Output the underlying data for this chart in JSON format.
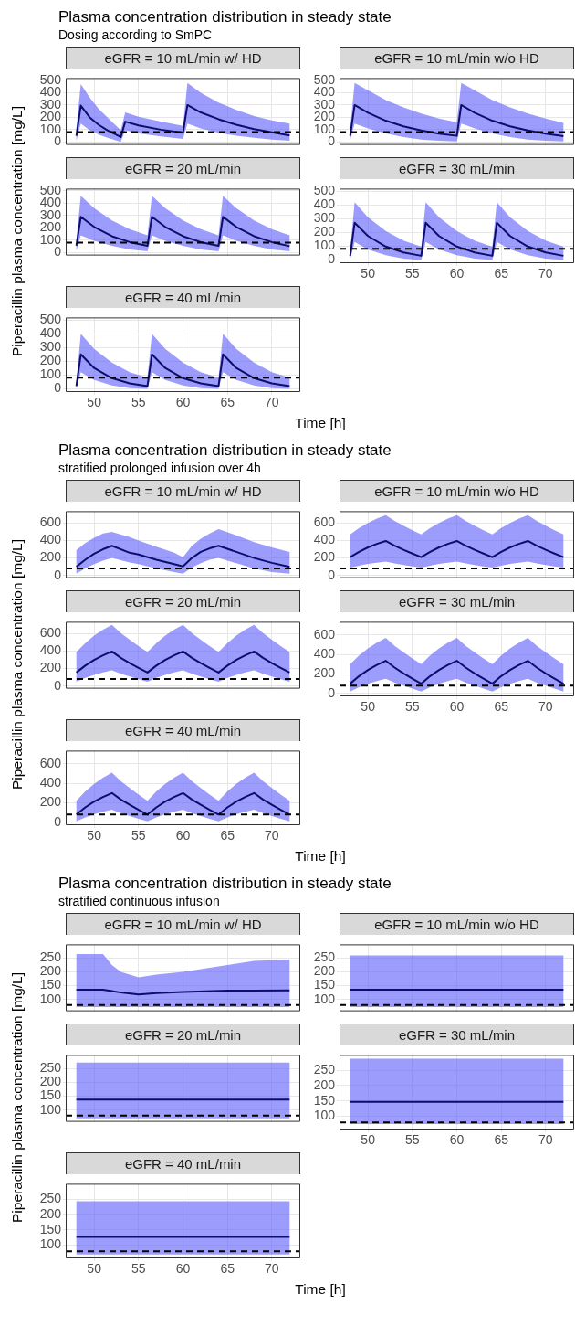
{
  "chart_data": [
    {
      "type": "other",
      "title": "Plasma concentration distribution in steady state",
      "subtitle": "Dosing according to SmPC"
    },
    {
      "type": "line",
      "title": "eGFR = 10 mL/min w/ HD",
      "ylabel": "Piperacillin plasma concentration [mg/L]",
      "tick_labels": "y",
      "grid": true,
      "xlim": [
        46.8,
        73.2
      ],
      "xticks": [
        50,
        55,
        60,
        65,
        70
      ],
      "ylim": [
        -24,
        519
      ],
      "yticks": [
        0,
        100,
        200,
        300,
        400,
        500
      ],
      "ref_lines": [
        {
          "axis": "y",
          "value": 80,
          "line_style": "dashed",
          "color": "#000000"
        }
      ],
      "x": [
        48,
        48.5,
        49.5,
        50.5,
        51.5,
        53,
        53.5,
        55,
        57.5,
        60,
        60.5,
        62,
        64,
        66,
        68,
        70,
        72
      ],
      "series": [
        {
          "color": "#0d0d6b",
          "values": [
            50,
            295,
            200,
            140,
            95,
            40,
            165,
            135,
            100,
            75,
            300,
            240,
            185,
            140,
            105,
            78,
            52
          ],
          "upper": [
            110,
            470,
            360,
            270,
            200,
            95,
            240,
            205,
            165,
            130,
            480,
            400,
            320,
            260,
            210,
            175,
            150
          ],
          "lower": [
            10,
            150,
            95,
            60,
            35,
            0,
            95,
            70,
            45,
            25,
            150,
            110,
            75,
            50,
            35,
            20,
            10
          ]
        }
      ]
    },
    {
      "type": "line",
      "title": "eGFR = 10 mL/min w/o HD",
      "tick_labels": "y",
      "grid": true,
      "xlim": [
        46.8,
        73.2
      ],
      "xticks": [
        50,
        55,
        60,
        65,
        70
      ],
      "ylim": [
        -24,
        519
      ],
      "yticks": [
        0,
        100,
        200,
        300,
        400,
        500
      ],
      "ref_lines": [
        {
          "axis": "y",
          "value": 80,
          "line_style": "dashed",
          "color": "#000000"
        }
      ],
      "x": [
        48,
        48.5,
        50,
        52,
        54,
        56,
        58,
        60,
        60.5,
        62,
        64,
        66,
        68,
        70,
        72
      ],
      "series": [
        {
          "color": "#0d0d6b",
          "values": [
            50,
            300,
            237,
            173,
            127,
            93,
            68,
            50,
            300,
            237,
            173,
            127,
            93,
            68,
            48
          ],
          "upper": [
            110,
            480,
            420,
            340,
            280,
            230,
            190,
            160,
            480,
            420,
            340,
            280,
            230,
            190,
            155
          ],
          "lower": [
            15,
            150,
            110,
            70,
            40,
            20,
            10,
            5,
            150,
            110,
            70,
            40,
            20,
            10,
            5
          ]
        }
      ]
    },
    {
      "type": "line",
      "title": "eGFR = 20 mL/min",
      "tick_labels": "y",
      "grid": true,
      "xlim": [
        46.8,
        73.2
      ],
      "xticks": [
        50,
        55,
        60,
        65,
        70
      ],
      "ylim": [
        -24,
        519
      ],
      "yticks": [
        0,
        100,
        200,
        300,
        400,
        500
      ],
      "ref_lines": [
        {
          "axis": "y",
          "value": 80,
          "line_style": "dashed",
          "color": "#000000"
        }
      ],
      "x": [
        48,
        48.5,
        50,
        52,
        54,
        56,
        56.5,
        58,
        60,
        62,
        64,
        64.5,
        66,
        68,
        70,
        72
      ],
      "series": [
        {
          "color": "#0d0d6b",
          "values": [
            55,
            290,
            208,
            133,
            85,
            55,
            290,
            208,
            133,
            85,
            55,
            290,
            208,
            133,
            85,
            52
          ],
          "upper": [
            100,
            460,
            360,
            260,
            190,
            140,
            460,
            360,
            260,
            190,
            140,
            460,
            360,
            260,
            190,
            140
          ],
          "lower": [
            15,
            140,
            95,
            55,
            25,
            10,
            140,
            95,
            55,
            25,
            10,
            140,
            95,
            55,
            25,
            10
          ]
        }
      ]
    },
    {
      "type": "line",
      "title": "eGFR = 30 mL/min",
      "grid": true,
      "xlim": [
        46.8,
        73.2
      ],
      "xticks": [
        50,
        55,
        60,
        65,
        70
      ],
      "ylim": [
        -24,
        519
      ],
      "yticks": [
        0,
        100,
        200,
        300,
        400,
        500
      ],
      "ref_lines": [
        {
          "axis": "y",
          "value": 80,
          "line_style": "dashed",
          "color": "#000000"
        }
      ],
      "x": [
        48,
        48.5,
        50,
        52,
        54,
        56,
        56.5,
        58,
        60,
        62,
        64,
        64.5,
        66,
        68,
        70,
        72
      ],
      "series": [
        {
          "color": "#0d0d6b",
          "values": [
            30,
            270,
            174,
            97,
            54,
            30,
            270,
            174,
            97,
            54,
            30,
            270,
            174,
            97,
            54,
            30
          ],
          "upper": [
            70,
            420,
            310,
            210,
            140,
            95,
            420,
            310,
            210,
            140,
            95,
            420,
            310,
            210,
            140,
            95
          ],
          "lower": [
            5,
            130,
            75,
            35,
            10,
            0,
            130,
            75,
            35,
            10,
            0,
            130,
            75,
            35,
            10,
            0
          ]
        }
      ]
    },
    {
      "type": "line",
      "title": "eGFR = 40 mL/min",
      "xlabel": "Time [h]",
      "grid": true,
      "xlim": [
        46.8,
        73.2
      ],
      "xticks": [
        50,
        55,
        60,
        65,
        70
      ],
      "ylim": [
        -24,
        519
      ],
      "yticks": [
        0,
        100,
        200,
        300,
        400,
        500
      ],
      "ref_lines": [
        {
          "axis": "y",
          "value": 80,
          "line_style": "dashed",
          "color": "#000000"
        }
      ],
      "x": [
        48,
        48.5,
        50,
        52,
        54,
        56,
        56.5,
        58,
        60,
        62,
        64,
        64.5,
        66,
        68,
        70,
        72
      ],
      "series": [
        {
          "color": "#0d0d6b",
          "values": [
            20,
            250,
            151,
            77,
            39,
            20,
            250,
            151,
            77,
            39,
            20,
            250,
            151,
            77,
            39,
            20
          ],
          "upper": [
            50,
            400,
            290,
            190,
            120,
            80,
            400,
            290,
            190,
            120,
            80,
            400,
            290,
            190,
            120,
            80
          ],
          "lower": [
            0,
            120,
            65,
            25,
            5,
            0,
            120,
            65,
            25,
            5,
            0,
            120,
            65,
            25,
            5,
            0
          ]
        }
      ]
    },
    {
      "type": "other",
      "title": "Plasma concentration distribution in steady state",
      "subtitle": "stratified prolonged infusion over 4h"
    },
    {
      "type": "line",
      "title": "eGFR = 10 mL/min w/ HD",
      "ylabel": "Piperacillin plasma concentration [mg/L]",
      "tick_labels": "y",
      "grid": true,
      "xlim": [
        46.8,
        73.2
      ],
      "xticks": [
        50,
        55,
        60,
        65,
        70
      ],
      "ylim": [
        -30,
        735
      ],
      "yticks": [
        0,
        200,
        400,
        600
      ],
      "ref_lines": [
        {
          "axis": "y",
          "value": 80,
          "line_style": "dashed",
          "color": "#000000"
        }
      ],
      "x": [
        48,
        49,
        50,
        51,
        52,
        54,
        55,
        57,
        59,
        60,
        61,
        62,
        63,
        64,
        66,
        68,
        70,
        72
      ],
      "series": [
        {
          "color": "#0d0d6b",
          "values": [
            100,
            180,
            250,
            300,
            340,
            260,
            240,
            180,
            130,
            105,
            200,
            270,
            310,
            340,
            270,
            200,
            145,
            100
          ],
          "upper": [
            290,
            370,
            430,
            480,
            500,
            440,
            400,
            330,
            260,
            210,
            340,
            420,
            480,
            530,
            460,
            380,
            320,
            270
          ],
          "lower": [
            20,
            80,
            130,
            170,
            200,
            150,
            130,
            80,
            40,
            20,
            90,
            140,
            180,
            200,
            140,
            80,
            40,
            20
          ]
        }
      ]
    },
    {
      "type": "line",
      "title": "eGFR = 10 mL/min w/o HD",
      "tick_labels": "y",
      "grid": true,
      "xlim": [
        46.8,
        73.2
      ],
      "xticks": [
        50,
        55,
        60,
        65,
        70
      ],
      "ylim": [
        -30,
        735
      ],
      "yticks": [
        0,
        200,
        400,
        600
      ],
      "ref_lines": [
        {
          "axis": "y",
          "value": 80,
          "line_style": "dashed",
          "color": "#000000"
        }
      ],
      "x": [
        48,
        49,
        50,
        51,
        52,
        53,
        54,
        55,
        56,
        57,
        58,
        59,
        60,
        61,
        62,
        63,
        64,
        65,
        66,
        67,
        68,
        69,
        70,
        71,
        72
      ],
      "series": [
        {
          "color": "#0d0d6b",
          "values": [
            210,
            271,
            321,
            362,
            395,
            340,
            293,
            251,
            210,
            271,
            321,
            362,
            395,
            340,
            293,
            251,
            210,
            271,
            321,
            362,
            395,
            340,
            293,
            251,
            210
          ],
          "upper": [
            470,
            543,
            602,
            650,
            690,
            624,
            569,
            518,
            470,
            543,
            602,
            650,
            690,
            624,
            569,
            518,
            470,
            543,
            602,
            650,
            690,
            624,
            569,
            518,
            470
          ],
          "lower": [
            90,
            113,
            132,
            147,
            160,
            139,
            121,
            105,
            90,
            113,
            132,
            147,
            160,
            139,
            121,
            105,
            90,
            113,
            132,
            147,
            160,
            139,
            121,
            105,
            90
          ]
        }
      ]
    },
    {
      "type": "line",
      "title": "eGFR = 20 mL/min",
      "tick_labels": "y",
      "grid": true,
      "xlim": [
        46.8,
        73.2
      ],
      "xticks": [
        50,
        55,
        60,
        65,
        70
      ],
      "ylim": [
        -30,
        735
      ],
      "yticks": [
        0,
        200,
        400,
        600
      ],
      "ref_lines": [
        {
          "axis": "y",
          "value": 80,
          "line_style": "dashed",
          "color": "#000000"
        }
      ],
      "x": [
        48,
        49,
        50,
        51,
        52,
        53,
        54,
        55,
        56,
        57,
        58,
        59,
        60,
        61,
        62,
        63,
        64,
        65,
        66,
        67,
        68,
        69,
        70,
        71,
        72
      ],
      "series": [
        {
          "color": "#0d0d6b",
          "values": [
            155,
            234,
            299,
            352,
            395,
            323,
            263,
            208,
            155,
            234,
            299,
            352,
            395,
            323,
            263,
            208,
            155,
            234,
            299,
            352,
            395,
            323,
            263,
            208,
            155
          ],
          "upper": [
            390,
            492,
            576,
            644,
            700,
            607,
            530,
            458,
            390,
            492,
            576,
            644,
            700,
            607,
            530,
            458,
            390,
            492,
            576,
            644,
            700,
            607,
            530,
            458,
            390
          ],
          "lower": [
            50,
            93,
            128,
            157,
            180,
            141,
            109,
            79,
            50,
            93,
            128,
            157,
            180,
            141,
            109,
            79,
            50,
            93,
            128,
            157,
            180,
            141,
            109,
            79,
            50
          ]
        }
      ]
    },
    {
      "type": "line",
      "title": "eGFR = 30 mL/min",
      "grid": true,
      "xlim": [
        46.8,
        73.2
      ],
      "xticks": [
        50,
        55,
        60,
        65,
        70
      ],
      "ylim": [
        -30,
        735
      ],
      "yticks": [
        0,
        200,
        400,
        600
      ],
      "ref_lines": [
        {
          "axis": "y",
          "value": 80,
          "line_style": "dashed",
          "color": "#000000"
        }
      ],
      "x": [
        48,
        49,
        50,
        51,
        52,
        53,
        54,
        55,
        56,
        57,
        58,
        59,
        60,
        61,
        62,
        63,
        64,
        65,
        66,
        67,
        68,
        69,
        70,
        71,
        72
      ],
      "series": [
        {
          "color": "#0d0d6b",
          "values": [
            100,
            178,
            241,
            293,
            335,
            265,
            206,
            152,
            100,
            178,
            241,
            293,
            335,
            265,
            206,
            152,
            100,
            178,
            241,
            293,
            335,
            265,
            206,
            152,
            100
          ],
          "upper": [
            300,
            389,
            462,
            521,
            570,
            489,
            422,
            359,
            300,
            389,
            462,
            521,
            570,
            489,
            422,
            359,
            300,
            389,
            462,
            521,
            570,
            489,
            422,
            359,
            300
          ],
          "lower": [
            20,
            63,
            98,
            127,
            150,
            111,
            79,
            49,
            20,
            63,
            98,
            127,
            150,
            111,
            79,
            49,
            20,
            63,
            98,
            127,
            150,
            111,
            79,
            49,
            20
          ]
        }
      ]
    },
    {
      "type": "line",
      "title": "eGFR = 40 mL/min",
      "xlabel": "Time [h]",
      "grid": true,
      "xlim": [
        46.8,
        73.2
      ],
      "xticks": [
        50,
        55,
        60,
        65,
        70
      ],
      "ylim": [
        -30,
        735
      ],
      "yticks": [
        0,
        200,
        400,
        600
      ],
      "ref_lines": [
        {
          "axis": "y",
          "value": 80,
          "line_style": "dashed",
          "color": "#000000"
        }
      ],
      "x": [
        48,
        49,
        50,
        51,
        52,
        53,
        54,
        55,
        56,
        57,
        58,
        59,
        60,
        61,
        62,
        63,
        64,
        65,
        66,
        67,
        68,
        69,
        70,
        71,
        72
      ],
      "series": [
        {
          "color": "#0d0d6b",
          "values": [
            80,
            153,
            212,
            260,
            300,
            234,
            179,
            128,
            80,
            153,
            212,
            260,
            300,
            234,
            179,
            128,
            80,
            153,
            212,
            260,
            300,
            234,
            179,
            128,
            80
          ],
          "upper": [
            220,
            316,
            394,
            458,
            510,
            423,
            351,
            284,
            220,
            316,
            394,
            458,
            510,
            423,
            351,
            284,
            220,
            316,
            394,
            458,
            510,
            423,
            351,
            284,
            220
          ],
          "lower": [
            10,
            50,
            82,
            108,
            130,
            94,
            64,
            36,
            10,
            50,
            82,
            108,
            130,
            94,
            64,
            36,
            10,
            50,
            82,
            108,
            130,
            94,
            64,
            36,
            10
          ]
        }
      ]
    },
    {
      "type": "other",
      "title": "Plasma concentration distribution in steady state",
      "subtitle": "stratified continuous infusion"
    },
    {
      "type": "line",
      "title": "eGFR = 10 mL/min w/ HD",
      "ylabel": "Piperacillin plasma concentration [mg/L]",
      "tick_labels": "y",
      "grid": true,
      "xlim": [
        46.8,
        73.2
      ],
      "xticks": [
        50,
        55,
        60,
        65,
        70
      ],
      "ylim": [
        57,
        300
      ],
      "yticks": [
        100,
        150,
        200,
        250
      ],
      "ref_lines": [
        {
          "axis": "y",
          "value": 80,
          "line_style": "dashed",
          "color": "#000000"
        }
      ],
      "x": [
        48,
        51,
        52,
        53,
        55,
        57,
        60,
        65,
        68,
        72
      ],
      "series": [
        {
          "color": "#0d0d6b",
          "values": [
            135,
            135,
            130,
            125,
            118,
            123,
            127,
            132,
            132,
            133
          ],
          "upper": [
            265,
            265,
            225,
            200,
            180,
            190,
            200,
            225,
            240,
            245
          ],
          "lower": [
            72,
            72,
            72,
            72,
            72,
            72,
            72,
            72,
            72,
            72
          ]
        }
      ]
    },
    {
      "type": "line",
      "title": "eGFR = 10 mL/min w/o HD",
      "tick_labels": "y",
      "grid": true,
      "xlim": [
        46.8,
        73.2
      ],
      "xticks": [
        50,
        55,
        60,
        65,
        70
      ],
      "ylim": [
        57,
        300
      ],
      "yticks": [
        100,
        150,
        200,
        250
      ],
      "ref_lines": [
        {
          "axis": "y",
          "value": 80,
          "line_style": "dashed",
          "color": "#000000"
        }
      ],
      "x": [
        48,
        72
      ],
      "series": [
        {
          "color": "#0d0d6b",
          "values": [
            135,
            135
          ],
          "upper": [
            260,
            260
          ],
          "lower": [
            72,
            72
          ]
        }
      ]
    },
    {
      "type": "line",
      "title": "eGFR = 20 mL/min",
      "tick_labels": "y",
      "grid": true,
      "xlim": [
        46.8,
        73.2
      ],
      "xticks": [
        50,
        55,
        60,
        65,
        70
      ],
      "ylim": [
        57,
        300
      ],
      "yticks": [
        100,
        150,
        200,
        250
      ],
      "ref_lines": [
        {
          "axis": "y",
          "value": 80,
          "line_style": "dashed",
          "color": "#000000"
        }
      ],
      "x": [
        48,
        72
      ],
      "series": [
        {
          "color": "#0d0d6b",
          "values": [
            138,
            138
          ],
          "upper": [
            272,
            272
          ],
          "lower": [
            70,
            70
          ]
        }
      ]
    },
    {
      "type": "line",
      "title": "eGFR = 30 mL/min",
      "grid": true,
      "xlim": [
        46.8,
        73.2
      ],
      "xticks": [
        50,
        55,
        60,
        65,
        70
      ],
      "ylim": [
        57,
        300
      ],
      "yticks": [
        100,
        150,
        200,
        250
      ],
      "ref_lines": [
        {
          "axis": "y",
          "value": 80,
          "line_style": "dashed",
          "color": "#000000"
        }
      ],
      "x": [
        48,
        72
      ],
      "series": [
        {
          "color": "#0d0d6b",
          "values": [
            147,
            147
          ],
          "upper": [
            288,
            288
          ],
          "lower": [
            75,
            75
          ]
        }
      ]
    },
    {
      "type": "line",
      "title": "eGFR = 40 mL/min",
      "xlabel": "Time [h]",
      "grid": true,
      "xlim": [
        46.8,
        73.2
      ],
      "xticks": [
        50,
        55,
        60,
        65,
        70
      ],
      "ylim": [
        57,
        300
      ],
      "yticks": [
        100,
        150,
        200,
        250
      ],
      "ref_lines": [
        {
          "axis": "y",
          "value": 80,
          "line_style": "dashed",
          "color": "#000000"
        }
      ],
      "x": [
        48,
        72
      ],
      "series": [
        {
          "color": "#0d0d6b",
          "values": [
            127,
            127
          ],
          "upper": [
            243,
            243
          ],
          "lower": [
            70,
            70
          ]
        }
      ]
    }
  ]
}
